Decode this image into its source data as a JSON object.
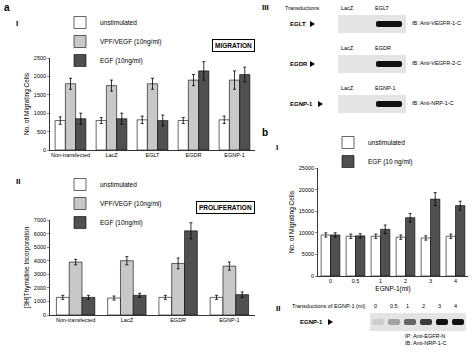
{
  "panel_labels": {
    "a": "a",
    "a_I": "I",
    "a_II": "II",
    "a_III": "III",
    "b": "b",
    "b_I": "I",
    "b_II": "II"
  },
  "chart_data": [
    {
      "type": "bar",
      "title": "MIGRATION",
      "y_label": "No. of Migrating Cells",
      "categories": [
        "Non-transfected",
        "LacZ",
        "EGLT",
        "EGDR",
        "EGNP-1"
      ],
      "series": [
        {
          "name": "unstimulated",
          "color": "#ffffff",
          "values": [
            800,
            800,
            820,
            800,
            820
          ],
          "errors": [
            100,
            80,
            100,
            80,
            100
          ]
        },
        {
          "name": "VPF/VEGF (10ng/ml)",
          "color": "#c8c8c8",
          "values": [
            1800,
            1750,
            1800,
            1900,
            1900
          ],
          "errors": [
            150,
            150,
            150,
            150,
            250
          ]
        },
        {
          "name": "EGF (10ng/ml)",
          "color": "#505050",
          "values": [
            850,
            850,
            800,
            2150,
            2050
          ],
          "errors": [
            150,
            150,
            150,
            250,
            200
          ]
        }
      ],
      "ylim": [
        0,
        2500
      ],
      "yticks": [
        0,
        500,
        1000,
        1500,
        2000,
        2500
      ],
      "grid": false,
      "legend": "top left"
    },
    {
      "type": "bar",
      "title": "PROLIFERATION",
      "y_label": "[3H]Thymidine Incorporation",
      "categories": [
        "Non-transfected",
        "LacZ",
        "EGDR",
        "EGNP-1"
      ],
      "series": [
        {
          "name": "unstimulated",
          "color": "#ffffff",
          "values": [
            1300,
            1250,
            1300,
            1300
          ],
          "errors": [
            150,
            150,
            150,
            150
          ]
        },
        {
          "name": "VPF/VEGF (10ng/ml)",
          "color": "#c8c8c8",
          "values": [
            3900,
            4000,
            3800,
            3600
          ],
          "errors": [
            200,
            300,
            400,
            300
          ]
        },
        {
          "name": "EGF (10ng/ml)",
          "color": "#505050",
          "values": [
            1300,
            1450,
            6200,
            1500
          ],
          "errors": [
            150,
            150,
            600,
            200
          ]
        }
      ],
      "ylim": [
        0,
        7000
      ],
      "yticks": [
        0,
        1000,
        2000,
        3000,
        4000,
        5000,
        6000,
        7000
      ],
      "grid": false,
      "legend": "top left"
    },
    {
      "type": "bar",
      "y_label": "No. of Migrating Cells",
      "x_label": "EGNP-1(ml)",
      "categories": [
        "0",
        "0.5",
        "1",
        "2",
        "3",
        "4"
      ],
      "series": [
        {
          "name": "unstimulated",
          "color": "#ffffff",
          "values": [
            9500,
            9200,
            9200,
            9000,
            8800,
            9200
          ],
          "errors": [
            500,
            500,
            500,
            500,
            500,
            500
          ]
        },
        {
          "name": "EGF (10 ng/ml)",
          "color": "#505050",
          "values": [
            9500,
            9300,
            10800,
            13500,
            17800,
            16300
          ],
          "errors": [
            500,
            500,
            1000,
            1000,
            1500,
            1000
          ]
        }
      ],
      "ylim": [
        0,
        25000
      ],
      "yticks": [
        0,
        5000,
        10000,
        15000,
        20000,
        25000
      ],
      "grid": false,
      "legend": "top left"
    }
  ],
  "blots": {
    "a_III": {
      "header": "Transductions",
      "rows": [
        {
          "lanes": [
            "LacZ",
            "EGLT"
          ],
          "band_label": "EGLT",
          "antibody": "IB: Anti-VEGFR-1-C",
          "band_intensity": [
            0,
            1
          ]
        },
        {
          "lanes": [
            "LacZ",
            "EGDR"
          ],
          "band_label": "EGDR",
          "antibody": "IB: Anti-VEGFR-2-C",
          "band_intensity": [
            0,
            1
          ]
        },
        {
          "lanes": [
            "LacZ",
            "EGNP-1"
          ],
          "band_label": "EGNP-1",
          "antibody": "IB: Anti-NRP-1-C",
          "band_intensity": [
            0,
            1
          ]
        }
      ]
    },
    "b_II": {
      "header": "Transductions of EGNP-1 (ml)",
      "lanes": [
        "0",
        "0.5",
        "1",
        "2",
        "3",
        "4"
      ],
      "band_label": "EGNP-1",
      "antibody": [
        "IP: Anti-EGFR-N",
        "IB: Anti-NRP-1-C"
      ],
      "band_intensity": [
        0.1,
        0.3,
        0.6,
        0.8,
        1,
        1
      ]
    }
  }
}
